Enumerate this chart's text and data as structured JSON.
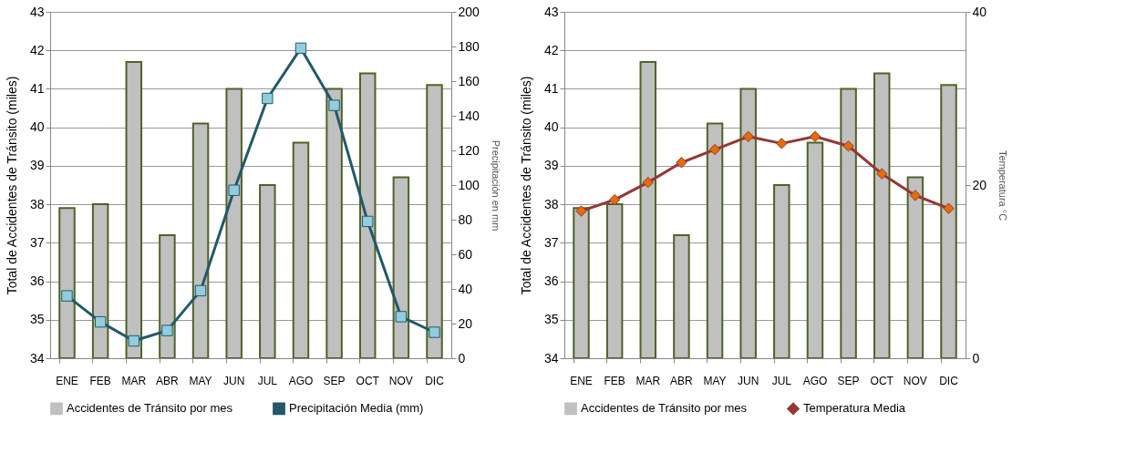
{
  "chart_data": [
    {
      "type": "bar",
      "categories": [
        "ENE",
        "FEB",
        "MAR",
        "ABR",
        "MAY",
        "JUN",
        "JUL",
        "AGO",
        "SEP",
        "OCT",
        "NOV",
        "DIC"
      ],
      "ylabel": "Total de Accidentes de Tránsito (miles)",
      "y2label": "Precipitación en mm",
      "ylim": [
        34,
        43
      ],
      "yticks": [
        34,
        35,
        36,
        37,
        38,
        39,
        40,
        41,
        42,
        43
      ],
      "y2lim": [
        0,
        200
      ],
      "y2ticks": [
        0,
        20,
        40,
        60,
        80,
        100,
        120,
        140,
        160,
        180,
        200
      ],
      "grid": "y",
      "legend": "bottom",
      "series": [
        {
          "name": "Accidentes de Tránsito por mes",
          "color": "#c0c0c0",
          "values": [
            37.9,
            38.0,
            41.7,
            37.2,
            40.1,
            41.0,
            38.5,
            39.6,
            41.0,
            41.4,
            38.7,
            41.1
          ]
        },
        {
          "name": "Precipitación Media (mm)",
          "type": "line",
          "axis": "y2",
          "color": "#215968",
          "marker": "square",
          "values": [
            36,
            21,
            10,
            16,
            39,
            97,
            150,
            179,
            146,
            79,
            24,
            15
          ]
        }
      ]
    },
    {
      "type": "bar",
      "categories": [
        "ENE",
        "FEB",
        "MAR",
        "ABR",
        "MAY",
        "JUN",
        "JUL",
        "AGO",
        "SEP",
        "OCT",
        "NOV",
        "DIC"
      ],
      "ylabel": "Total de Accidentes de Tránsito (miles)",
      "y2label": "Temperatura °C",
      "ylim": [
        34,
        43
      ],
      "yticks": [
        34,
        35,
        36,
        37,
        38,
        39,
        40,
        41,
        42,
        43
      ],
      "y2lim": [
        0,
        40
      ],
      "y2ticks": [
        0,
        20,
        40
      ],
      "grid": "y",
      "legend": "bottom",
      "series": [
        {
          "name": "Accidentes de Tránsito por mes",
          "color": "#c0c0c0",
          "values": [
            37.9,
            38.0,
            41.7,
            37.2,
            40.1,
            41.0,
            38.5,
            39.6,
            41.0,
            41.4,
            38.7,
            41.1
          ]
        },
        {
          "name": "Temperatura Media",
          "type": "line",
          "axis": "y2",
          "color": "#953735",
          "marker": "diamond",
          "values": [
            17.0,
            18.3,
            20.3,
            22.6,
            24.1,
            25.6,
            24.8,
            25.6,
            24.5,
            21.3,
            18.8,
            17.3
          ]
        }
      ]
    }
  ]
}
